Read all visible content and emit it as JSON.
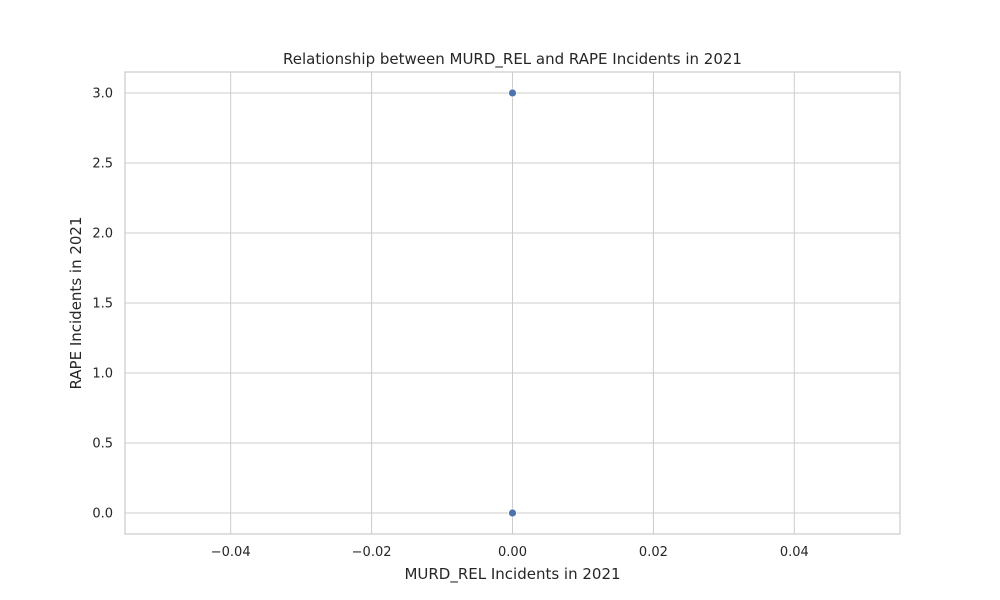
{
  "chart_data": {
    "type": "scatter",
    "title": "Relationship between MURD_REL and RAPE Incidents in 2021",
    "xlabel": "MURD_REL Incidents in 2021",
    "ylabel": "RAPE Incidents in 2021",
    "xlim": [
      -0.055,
      0.055
    ],
    "ylim": [
      -0.15,
      3.15
    ],
    "xticks": [
      -0.04,
      -0.02,
      0.0,
      0.02,
      0.04
    ],
    "xtick_labels": [
      "−0.04",
      "−0.02",
      "0.00",
      "0.02",
      "0.04"
    ],
    "yticks": [
      0.0,
      0.5,
      1.0,
      1.5,
      2.0,
      2.5,
      3.0
    ],
    "ytick_labels": [
      "0.0",
      "0.5",
      "1.0",
      "1.5",
      "2.0",
      "2.5",
      "3.0"
    ],
    "grid": true,
    "series": [
      {
        "color": "#4c72b0",
        "x": [
          0.0,
          0.0
        ],
        "y": [
          3.0,
          0.0
        ]
      }
    ]
  }
}
